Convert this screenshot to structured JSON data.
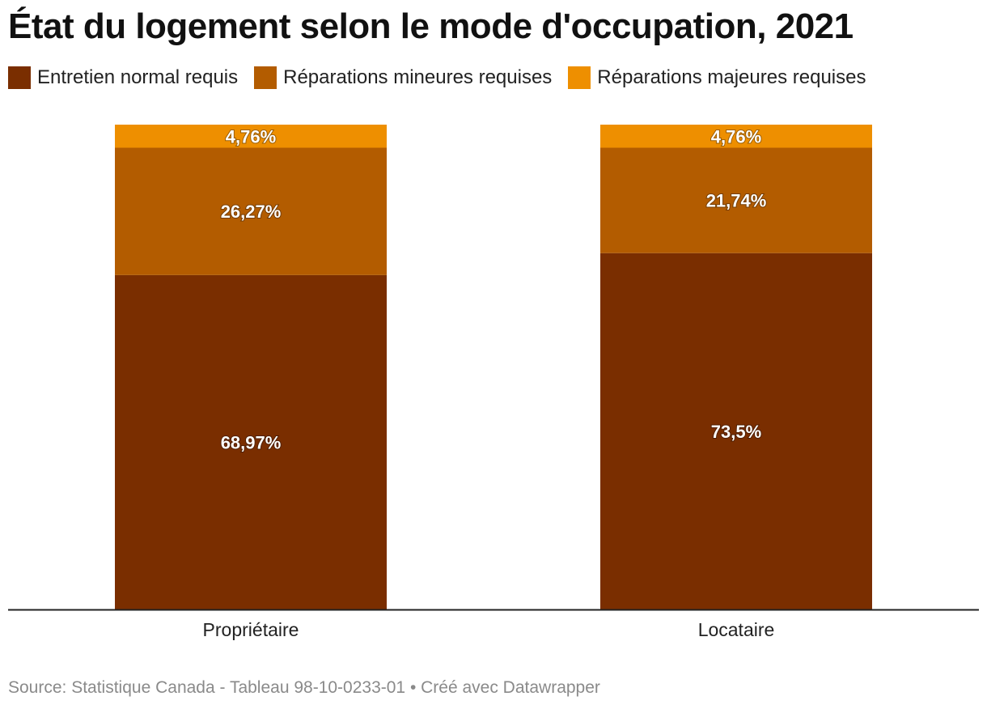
{
  "chart_data": {
    "type": "bar",
    "stacked": true,
    "title": "État du logement selon le mode d'occupation, 2021",
    "categories": [
      "Propriétaire",
      "Locataire"
    ],
    "series": [
      {
        "name": "Entretien normal requis",
        "values": [
          68.97,
          73.5
        ],
        "labels": [
          "68,97%",
          "73,5%"
        ],
        "color": "#7a2e00"
      },
      {
        "name": "Réparations mineures requises",
        "values": [
          26.27,
          21.74
        ],
        "labels": [
          "26,27%",
          "21,74%"
        ],
        "color": "#b35c00"
      },
      {
        "name": "Réparations majeures requises",
        "values": [
          4.76,
          4.76
        ],
        "labels": [
          "4,76%",
          "4,76%"
        ],
        "color": "#ee8f00"
      }
    ],
    "ylim": [
      0,
      100
    ],
    "legend_position": "top-left",
    "grid": false
  },
  "source": "Source: Statistique Canada - Tableau 98-10-0233-01 • Créé avec Datawrapper"
}
